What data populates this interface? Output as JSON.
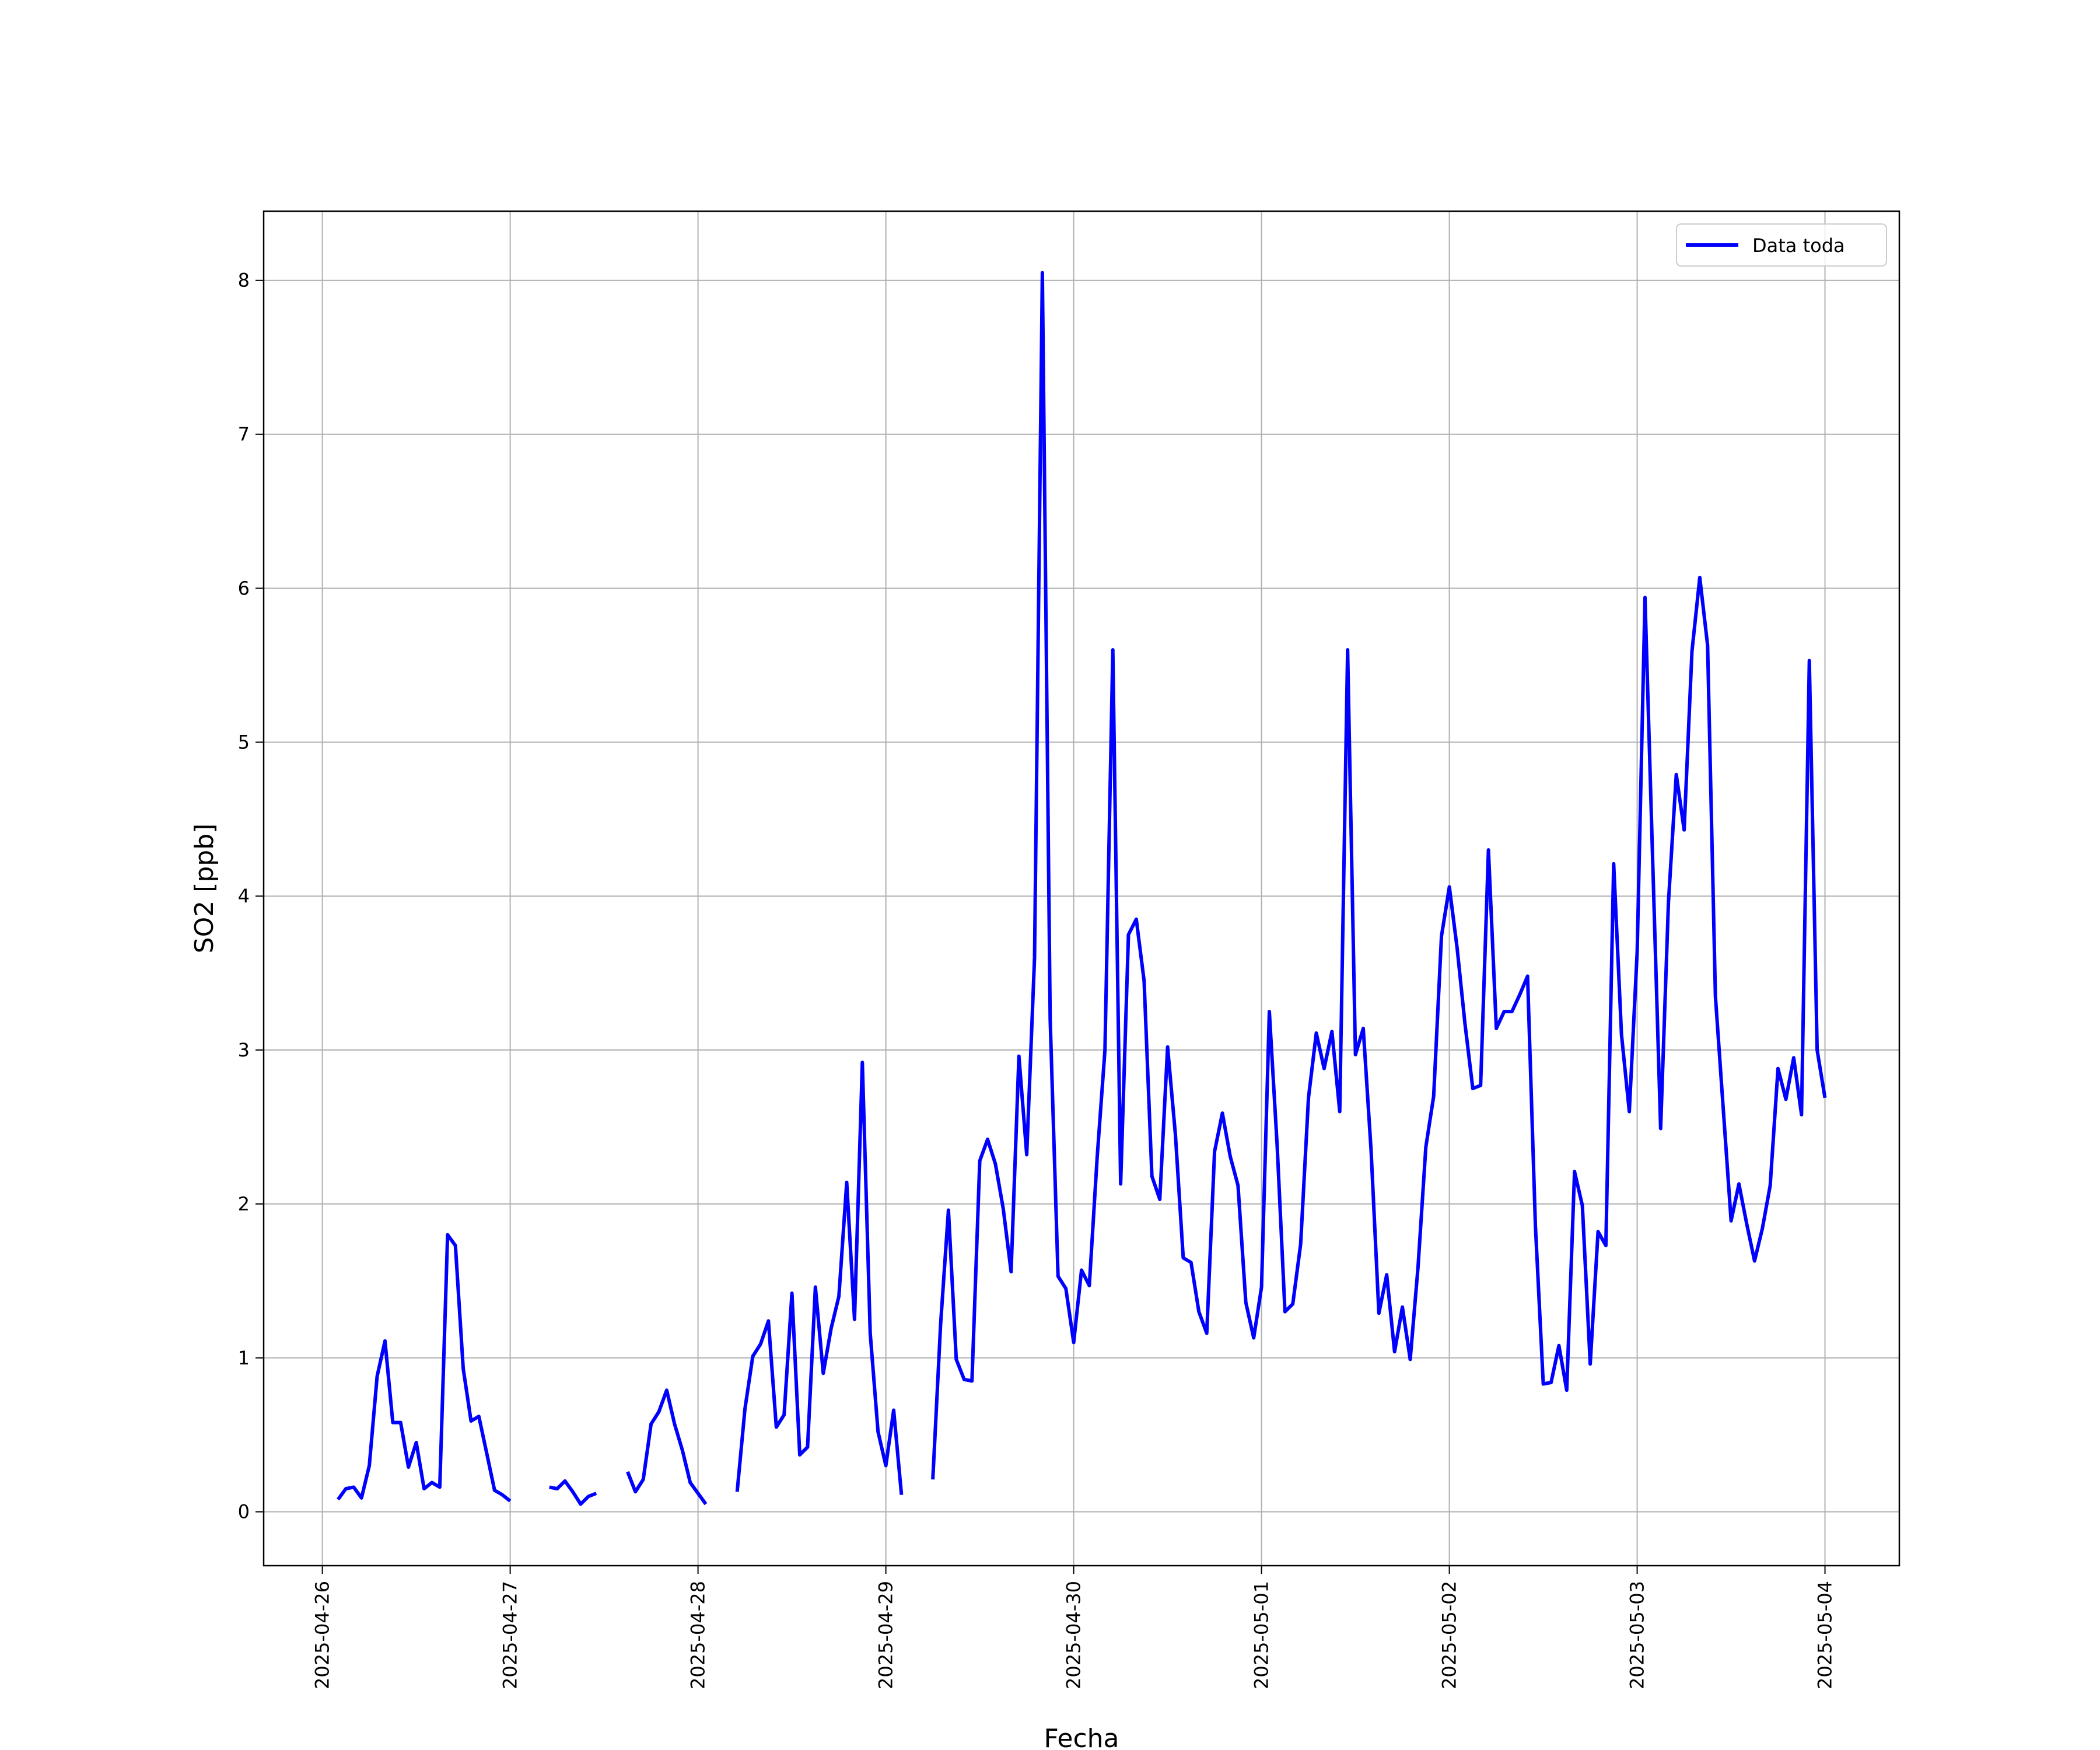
{
  "chart_data": {
    "type": "line",
    "xlabel": "Fecha",
    "ylabel": "SO2 [ppb]",
    "x": [
      "2025-04-26 02:00",
      "2025-04-26 03:00",
      "2025-04-26 04:00",
      "2025-04-26 05:00",
      "2025-04-26 06:00",
      "2025-04-26 07:00",
      "2025-04-26 08:00",
      "2025-04-26 09:00",
      "2025-04-26 10:00",
      "2025-04-26 11:00",
      "2025-04-26 12:00",
      "2025-04-26 13:00",
      "2025-04-26 14:00",
      "2025-04-26 15:00",
      "2025-04-26 16:00",
      "2025-04-26 17:00",
      "2025-04-26 18:00",
      "2025-04-26 19:00",
      "2025-04-26 20:00",
      "2025-04-26 21:00",
      "2025-04-26 22:00",
      "2025-04-26 23:00",
      "2025-04-27 00:00",
      "2025-04-27 01:00",
      "2025-04-27 02:00",
      "2025-04-27 03:00",
      "2025-04-27 04:00",
      "2025-04-27 05:00",
      "2025-04-27 06:00",
      "2025-04-27 07:00",
      "2025-04-27 08:00",
      "2025-04-27 09:00",
      "2025-04-27 10:00",
      "2025-04-27 11:00",
      "2025-04-27 12:00",
      "2025-04-27 13:00",
      "2025-04-27 14:00",
      "2025-04-27 15:00",
      "2025-04-27 16:00",
      "2025-04-27 17:00",
      "2025-04-27 18:00",
      "2025-04-27 19:00",
      "2025-04-27 20:00",
      "2025-04-27 21:00",
      "2025-04-27 22:00",
      "2025-04-27 23:00",
      "2025-04-28 00:00",
      "2025-04-28 01:00",
      "2025-04-28 02:00",
      "2025-04-28 03:00",
      "2025-04-28 04:00",
      "2025-04-28 05:00",
      "2025-04-28 06:00",
      "2025-04-28 07:00",
      "2025-04-28 08:00",
      "2025-04-28 09:00",
      "2025-04-28 10:00",
      "2025-04-28 11:00",
      "2025-04-28 12:00",
      "2025-04-28 13:00",
      "2025-04-28 14:00",
      "2025-04-28 15:00",
      "2025-04-28 16:00",
      "2025-04-28 17:00",
      "2025-04-28 18:00",
      "2025-04-28 19:00",
      "2025-04-28 20:00",
      "2025-04-28 21:00",
      "2025-04-28 22:00",
      "2025-04-28 23:00",
      "2025-04-29 00:00",
      "2025-04-29 01:00",
      "2025-04-29 02:00",
      "2025-04-29 03:00",
      "2025-04-29 04:00",
      "2025-04-29 05:00",
      "2025-04-29 06:00",
      "2025-04-29 07:00",
      "2025-04-29 08:00",
      "2025-04-29 09:00",
      "2025-04-29 10:00",
      "2025-04-29 11:00",
      "2025-04-29 12:00",
      "2025-04-29 13:00",
      "2025-04-29 14:00",
      "2025-04-29 15:00",
      "2025-04-29 16:00",
      "2025-04-29 17:00",
      "2025-04-29 18:00",
      "2025-04-29 19:00",
      "2025-04-29 20:00",
      "2025-04-29 21:00",
      "2025-04-29 22:00",
      "2025-04-29 23:00",
      "2025-04-30 00:00",
      "2025-04-30 01:00",
      "2025-04-30 02:00",
      "2025-04-30 03:00",
      "2025-04-30 04:00",
      "2025-04-30 05:00",
      "2025-04-30 06:00",
      "2025-04-30 07:00",
      "2025-04-30 08:00",
      "2025-04-30 09:00",
      "2025-04-30 10:00",
      "2025-04-30 11:00",
      "2025-04-30 12:00",
      "2025-04-30 13:00",
      "2025-04-30 14:00",
      "2025-04-30 15:00",
      "2025-04-30 16:00",
      "2025-04-30 17:00",
      "2025-04-30 18:00",
      "2025-04-30 19:00",
      "2025-04-30 20:00",
      "2025-04-30 21:00",
      "2025-04-30 22:00",
      "2025-04-30 23:00",
      "2025-05-01 00:00",
      "2025-05-01 01:00",
      "2025-05-01 02:00",
      "2025-05-01 03:00",
      "2025-05-01 04:00",
      "2025-05-01 05:00",
      "2025-05-01 06:00",
      "2025-05-01 07:00",
      "2025-05-01 08:00",
      "2025-05-01 09:00",
      "2025-05-01 10:00",
      "2025-05-01 11:00",
      "2025-05-01 12:00",
      "2025-05-01 13:00",
      "2025-05-01 14:00",
      "2025-05-01 15:00",
      "2025-05-01 16:00",
      "2025-05-01 17:00",
      "2025-05-01 18:00",
      "2025-05-01 19:00",
      "2025-05-01 20:00",
      "2025-05-01 21:00",
      "2025-05-01 22:00",
      "2025-05-01 23:00",
      "2025-05-02 00:00",
      "2025-05-02 01:00",
      "2025-05-02 02:00",
      "2025-05-02 03:00",
      "2025-05-02 04:00",
      "2025-05-02 05:00",
      "2025-05-02 06:00",
      "2025-05-02 07:00",
      "2025-05-02 08:00",
      "2025-05-02 09:00",
      "2025-05-02 10:00",
      "2025-05-02 11:00",
      "2025-05-02 12:00",
      "2025-05-02 13:00",
      "2025-05-02 14:00",
      "2025-05-02 15:00",
      "2025-05-02 16:00",
      "2025-05-02 17:00",
      "2025-05-02 18:00",
      "2025-05-02 19:00",
      "2025-05-02 20:00",
      "2025-05-02 21:00",
      "2025-05-02 22:00",
      "2025-05-02 23:00",
      "2025-05-03 00:00",
      "2025-05-03 01:00",
      "2025-05-03 02:00",
      "2025-05-03 03:00",
      "2025-05-03 04:00",
      "2025-05-03 05:00",
      "2025-05-03 06:00",
      "2025-05-03 07:00",
      "2025-05-03 08:00",
      "2025-05-03 09:00",
      "2025-05-03 10:00",
      "2025-05-03 11:00",
      "2025-05-03 12:00",
      "2025-05-03 13:00",
      "2025-05-03 14:00",
      "2025-05-03 15:00",
      "2025-05-03 16:00",
      "2025-05-03 17:00",
      "2025-05-03 18:00",
      "2025-05-03 19:00",
      "2025-05-03 20:00",
      "2025-05-03 21:00",
      "2025-05-03 22:00",
      "2025-05-03 23:00",
      "2025-05-04 00:00"
    ],
    "series": [
      {
        "name": "Data toda",
        "color": "#0000ff",
        "values": [
          0.08,
          0.15,
          0.16,
          0.09,
          0.3,
          0.88,
          1.11,
          0.58,
          0.58,
          0.29,
          0.45,
          0.15,
          0.19,
          0.16,
          1.8,
          1.73,
          0.93,
          0.59,
          0.62,
          0.38,
          0.14,
          0.11,
          0.07,
          null,
          null,
          null,
          null,
          0.16,
          0.15,
          0.2,
          0.13,
          0.05,
          0.1,
          0.12,
          null,
          null,
          null,
          0.26,
          0.13,
          0.21,
          0.57,
          0.65,
          0.79,
          0.57,
          0.4,
          0.19,
          0.12,
          0.05,
          null,
          null,
          null,
          0.13,
          0.67,
          1.01,
          1.09,
          1.24,
          0.55,
          0.63,
          1.42,
          0.37,
          0.42,
          1.46,
          0.9,
          1.19,
          1.4,
          2.14,
          1.25,
          2.92,
          1.16,
          0.52,
          0.3,
          0.66,
          0.11,
          null,
          null,
          null,
          0.21,
          1.22,
          1.96,
          0.99,
          0.86,
          0.85,
          2.28,
          2.42,
          2.26,
          1.97,
          1.56,
          2.96,
          2.32,
          3.6,
          8.05,
          3.2,
          1.53,
          1.45,
          1.1,
          1.57,
          1.47,
          2.3,
          3.0,
          5.6,
          2.13,
          3.75,
          3.85,
          3.45,
          2.18,
          2.03,
          3.02,
          2.45,
          1.65,
          1.62,
          1.3,
          1.16,
          2.34,
          2.59,
          2.31,
          2.12,
          1.36,
          1.13,
          1.46,
          3.25,
          2.38,
          1.3,
          1.35,
          1.74,
          2.69,
          3.11,
          2.88,
          3.12,
          2.6,
          5.6,
          2.97,
          3.14,
          2.35,
          1.29,
          1.54,
          1.04,
          1.33,
          0.99,
          1.59,
          2.37,
          2.7,
          3.74,
          4.06,
          3.66,
          3.17,
          2.75,
          2.77,
          4.3,
          3.14,
          3.25,
          3.25,
          3.36,
          3.48,
          1.86,
          0.83,
          0.84,
          1.08,
          0.79,
          2.21,
          1.99,
          0.96,
          1.82,
          1.73,
          4.21,
          3.1,
          2.6,
          3.64,
          5.94,
          4.2,
          2.49,
          3.96,
          4.79,
          4.43,
          5.59,
          6.07,
          5.63,
          3.35,
          2.62,
          1.89,
          2.13,
          1.87,
          1.63,
          1.84,
          2.12,
          2.88,
          2.68,
          2.95,
          2.58,
          5.53,
          3.0,
          2.69
        ]
      }
    ],
    "xlim": [
      "2025-04-25 16:30",
      "2025-05-04 09:30"
    ],
    "xticks": [
      "2025-04-26",
      "2025-04-27",
      "2025-04-28",
      "2025-04-29",
      "2025-04-30",
      "2025-05-01",
      "2025-05-02",
      "2025-05-03",
      "2025-05-04"
    ],
    "ylim": [
      -0.35,
      8.45
    ],
    "yticks": [
      0,
      1,
      2,
      3,
      4,
      5,
      6,
      7,
      8
    ],
    "grid": true,
    "legend": "upper right"
  }
}
